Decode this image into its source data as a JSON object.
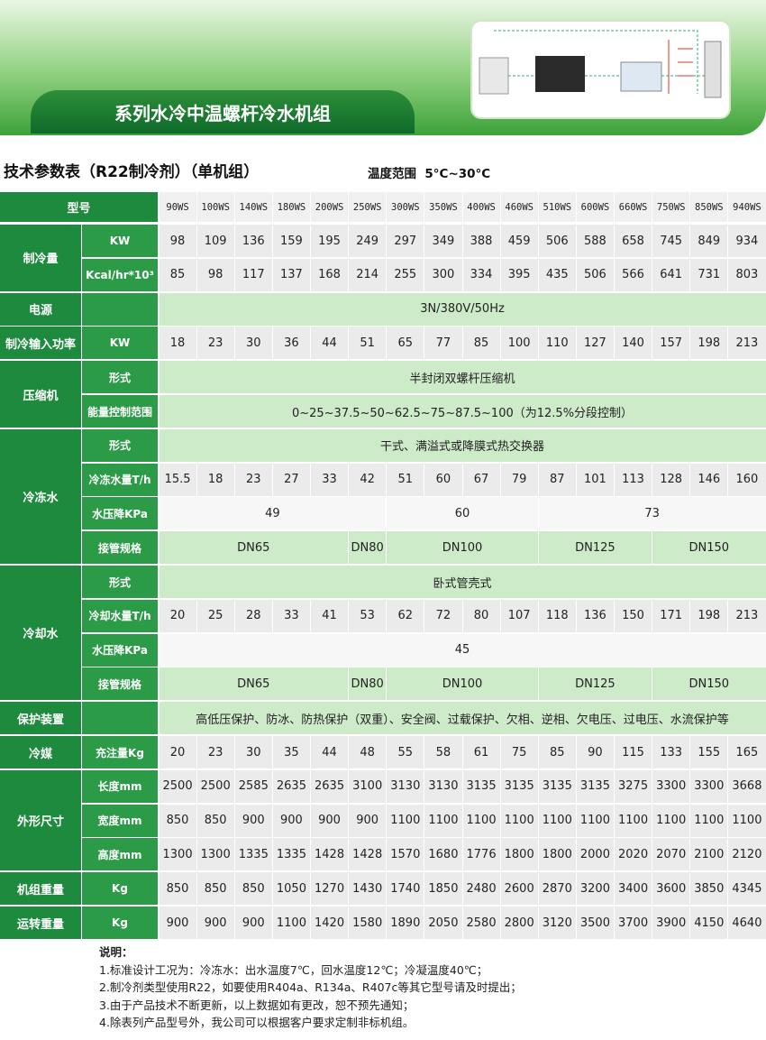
{
  "banner": {
    "title": "系列水冷中温螺杆冷水机组"
  },
  "heading": {
    "title": "技术参数表（R22制冷剂）（单机组）",
    "range_label": "温度范围",
    "range": "5°C~30°C"
  },
  "table": {
    "header": "型号",
    "models": [
      "90WS",
      "100WS",
      "140WS",
      "180WS",
      "200WS",
      "250WS",
      "300WS",
      "350WS",
      "400WS",
      "460WS",
      "510WS",
      "600WS",
      "660WS",
      "750WS",
      "850WS",
      "940WS"
    ],
    "groups": [
      {
        "label": "制冷量",
        "rows": [
          {
            "label": "KW",
            "cells": [
              98,
              109,
              136,
              159,
              195,
              249,
              297,
              349,
              388,
              459,
              506,
              588,
              658,
              745,
              849,
              934
            ]
          },
          {
            "label": "Kcal/hr*10³",
            "cells": [
              85,
              98,
              117,
              137,
              168,
              214,
              255,
              300,
              334,
              395,
              435,
              506,
              566,
              641,
              731,
              803
            ]
          }
        ]
      },
      {
        "label": "电源",
        "rows": [
          {
            "cells": [
              "3N/380V/50Hz"
            ]
          }
        ]
      },
      {
        "label": "制冷输入功率",
        "rows": [
          {
            "label": "KW",
            "cells": [
              18,
              23,
              30,
              36,
              44,
              51,
              65,
              77,
              85,
              100,
              110,
              127,
              140,
              157,
              198,
              213
            ]
          }
        ]
      },
      {
        "label": "压缩机",
        "rows": [
          {
            "label": "形式",
            "cells": [
              "半封闭双螺杆压缩机"
            ]
          },
          {
            "label": "能量控制范围",
            "cells": [
              "0~25~37.5~50~62.5~75~87.5~100（为12.5%分段控制）"
            ]
          }
        ]
      },
      {
        "label": "冷冻水",
        "rows": [
          {
            "label": "形式",
            "cells": [
              "干式、满溢式或降膜式热交换器"
            ]
          },
          {
            "label": "冷冻水量T/h",
            "cells": [
              15.5,
              18,
              23,
              27,
              33,
              42,
              51,
              60,
              67,
              79,
              87,
              101,
              113,
              128,
              146,
              160
            ]
          },
          {
            "label": "水压降KPa",
            "cells": [
              49,
              60,
              73
            ]
          },
          {
            "label": "接管规格",
            "cells": [
              "DN65",
              "DN80",
              "DN100",
              "DN125",
              "DN150"
            ]
          }
        ]
      },
      {
        "label": "冷却水",
        "rows": [
          {
            "label": "形式",
            "cells": [
              "卧式管壳式"
            ]
          },
          {
            "label": "冷却水量T/h",
            "cells": [
              20,
              25,
              28,
              33,
              41,
              53,
              62,
              72,
              80,
              107,
              118,
              136,
              150,
              171,
              198,
              213
            ]
          },
          {
            "label": "水压降KPa",
            "cells": [
              45
            ]
          },
          {
            "label": "接管规格",
            "cells": [
              "DN65",
              "DN80",
              "DN100",
              "DN125",
              "DN150"
            ]
          }
        ]
      },
      {
        "label": "保护装置",
        "rows": [
          {
            "cells": [
              "高低压保护、防冰、防热保护（双重）、安全阀、过载保护、欠相、逆相、欠电压、过电压、水流保护等"
            ]
          }
        ]
      },
      {
        "label": "冷媒",
        "rows": [
          {
            "label": "充注量Kg",
            "cells": [
              20,
              23,
              30,
              35,
              44,
              48,
              55,
              58,
              61,
              75,
              85,
              90,
              115,
              133,
              155,
              165
            ]
          }
        ]
      },
      {
        "label": "外形尺寸",
        "rows": [
          {
            "label": "长度mm",
            "cells": [
              2500,
              2500,
              2585,
              2635,
              2635,
              3100,
              3130,
              3130,
              3135,
              3135,
              3135,
              3135,
              3275,
              3300,
              3300,
              3668
            ]
          },
          {
            "label": "宽度mm",
            "cells": [
              850,
              850,
              900,
              900,
              900,
              900,
              1100,
              1100,
              1100,
              1100,
              1100,
              1100,
              1100,
              1100,
              1100,
              1100
            ]
          },
          {
            "label": "高度mm",
            "cells": [
              1300,
              1300,
              1335,
              1335,
              1428,
              1428,
              1570,
              1680,
              1776,
              1800,
              1800,
              2000,
              2020,
              2070,
              2100,
              2120
            ]
          }
        ]
      },
      {
        "label": "机组重量",
        "rows": [
          {
            "label": "Kg",
            "cells": [
              850,
              850,
              850,
              1050,
              1270,
              1430,
              1740,
              1850,
              2480,
              2600,
              2870,
              3200,
              3400,
              3600,
              3850,
              4345
            ]
          }
        ]
      },
      {
        "label": "运转重量",
        "rows": [
          {
            "label": "Kg",
            "cells": [
              900,
              900,
              900,
              1100,
              1420,
              1580,
              1890,
              2050,
              2580,
              2800,
              3120,
              3500,
              3700,
              3900,
              4150,
              4640
            ]
          }
        ]
      }
    ]
  },
  "notes": {
    "title": "说明：",
    "lines": [
      "1.标准设计工况为：冷冻水：出水温度7℃，回水温度12℃；冷凝温度40℃；",
      "2.制冷剂类型使用R22，如要使用R404a、R134a、R407c等其它型号请及时提出；",
      "3.由于产品技术不断更新，以上数据如有更改，恕不预先通知；",
      "4.除表列产品型号外，我公司可以根据客户要求定制非标机组。"
    ]
  }
}
